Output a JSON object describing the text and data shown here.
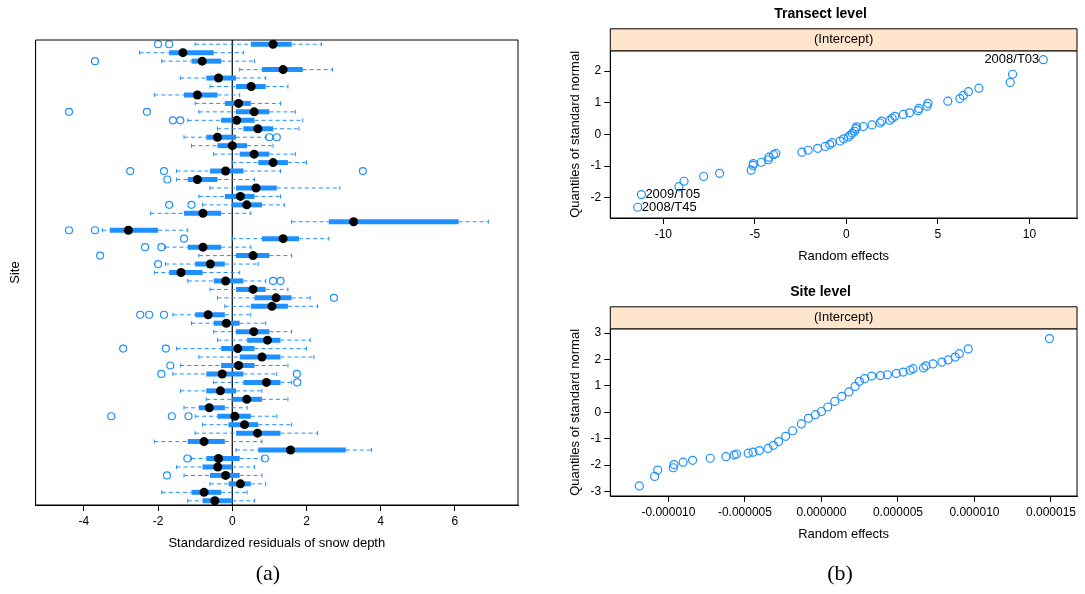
{
  "chart_data": [
    {
      "type": "box",
      "orientation": "horizontal",
      "xlabel": "Standardized residuals of snow depth",
      "ylabel": "Site",
      "color": "#1e90ff",
      "xlim": [
        -5.3,
        7.7
      ],
      "xticks": [
        -4,
        -2,
        0,
        2,
        4,
        6
      ],
      "tick_labels": "x",
      "ref_lines": [
        {
          "axis": "x",
          "value": 0,
          "color": "#000000"
        }
      ],
      "annotations": [
        "(a)"
      ],
      "categories": [
        null,
        null,
        null,
        null,
        null,
        null,
        null,
        null,
        null,
        null,
        null,
        null,
        null,
        null,
        null,
        null,
        null,
        null,
        null,
        null,
        null,
        null,
        null,
        null,
        null,
        null,
        null,
        null,
        null,
        null,
        null,
        null,
        null,
        null,
        null,
        null,
        null,
        null,
        null,
        null,
        null,
        null,
        null,
        null,
        null,
        null,
        null,
        null,
        null,
        null,
        null,
        null,
        null,
        null,
        null
      ],
      "boxes": [
        {
          "low": -1.0,
          "q1": 0.5,
          "median": 1.1,
          "q3": 1.6,
          "high": 2.4,
          "outliers": [
            -2.0,
            -1.7
          ]
        },
        {
          "low": -2.5,
          "q1": -1.7,
          "median": -1.33,
          "q3": -0.5,
          "high": 0.3
        },
        {
          "low": -1.9,
          "q1": -1.1,
          "median": -0.81,
          "q3": -0.3,
          "high": 0.6,
          "outliers": [
            -3.7
          ]
        },
        {
          "low": 0.2,
          "q1": 0.8,
          "median": 1.37,
          "q3": 1.9,
          "high": 2.7
        },
        {
          "low": -1.4,
          "q1": -0.7,
          "median": -0.37,
          "q3": 0.1,
          "high": 0.9
        },
        {
          "low": -0.6,
          "q1": 0.1,
          "median": 0.51,
          "q3": 0.9,
          "high": 1.5
        },
        {
          "low": -2.1,
          "q1": -1.3,
          "median": -0.94,
          "q3": -0.4,
          "high": 0.2
        },
        {
          "low": -1.0,
          "q1": -0.2,
          "median": 0.17,
          "q3": 0.5,
          "high": 1.3
        },
        {
          "low": -0.9,
          "q1": 0.1,
          "median": 0.59,
          "q3": 1.0,
          "high": 1.7,
          "outliers": [
            -4.4,
            -2.3
          ]
        },
        {
          "low": -1.2,
          "q1": -0.3,
          "median": 0.12,
          "q3": 0.6,
          "high": 1.9,
          "outliers": [
            -1.6,
            -1.4
          ]
        },
        {
          "low": -0.4,
          "q1": 0.3,
          "median": 0.69,
          "q3": 1.1,
          "high": 1.8
        },
        {
          "low": -1.3,
          "q1": -0.7,
          "median": -0.4,
          "q3": 0.1,
          "high": 0.9,
          "outliers": [
            1.0,
            1.2
          ]
        },
        {
          "low": -1.1,
          "q1": -0.4,
          "median": 0,
          "q3": 0.4,
          "high": 1.1
        },
        {
          "low": -0.5,
          "q1": 0.2,
          "median": 0.59,
          "q3": 1.0,
          "high": 1.7
        },
        {
          "low": 0.0,
          "q1": 0.7,
          "median": 1.1,
          "q3": 1.5,
          "high": 2.0
        },
        {
          "low": -1.5,
          "q1": -0.6,
          "median": -0.18,
          "q3": 0.3,
          "high": 1.3,
          "outliers": [
            -2.75,
            -1.84,
            3.52
          ]
        },
        {
          "low": -1.5,
          "q1": -1.2,
          "median": -0.94,
          "q3": -0.4,
          "high": 0.6,
          "outliers": [
            -1.75
          ]
        },
        {
          "low": -0.6,
          "q1": 0.1,
          "median": 0.64,
          "q3": 1.2,
          "high": 2.9
        },
        {
          "low": -0.9,
          "q1": -0.2,
          "median": 0.22,
          "q3": 0.6,
          "high": 1.3
        },
        {
          "low": -0.8,
          "q1": 0.0,
          "median": 0.39,
          "q3": 0.8,
          "high": 1.4,
          "outliers": [
            -1.7,
            -1.1
          ]
        },
        {
          "low": -2.2,
          "q1": -1.3,
          "median": -0.79,
          "q3": -0.3,
          "high": 0.5
        },
        {
          "low": 1.6,
          "q1": 2.6,
          "median": 3.27,
          "q3": 6.1,
          "high": 6.9
        },
        {
          "low": -3.5,
          "q1": -3.3,
          "median": -2.8,
          "q3": -2.0,
          "high": -1.2,
          "outliers": [
            -4.4,
            -3.7
          ]
        },
        {
          "low": 0.0,
          "q1": 0.8,
          "median": 1.37,
          "q3": 1.8,
          "high": 2.6,
          "outliers": [
            -1.3
          ]
        },
        {
          "low": -1.8,
          "q1": -1.2,
          "median": -0.79,
          "q3": -0.3,
          "high": 0.5,
          "outliers": [
            -2.35,
            -1.91
          ]
        },
        {
          "low": -0.9,
          "q1": 0.1,
          "median": 0.56,
          "q3": 1.0,
          "high": 1.6,
          "outliers": [
            -3.56
          ]
        },
        {
          "low": -1.8,
          "q1": -1.0,
          "median": -0.59,
          "q3": -0.2,
          "high": 0.7,
          "outliers": [
            -2.0
          ]
        },
        {
          "low": -2.1,
          "q1": -1.7,
          "median": -1.38,
          "q3": -0.8,
          "high": 0.2
        },
        {
          "low": -1.2,
          "q1": -0.5,
          "median": -0.18,
          "q3": 0.3,
          "high": 0.9,
          "outliers": [
            1.1,
            1.3
          ]
        },
        {
          "low": -0.6,
          "q1": 0.1,
          "median": 0.56,
          "q3": 0.9,
          "high": 1.5
        },
        {
          "low": -0.4,
          "q1": 0.6,
          "median": 1.18,
          "q3": 1.6,
          "high": 2.1,
          "outliers": [
            2.74
          ]
        },
        {
          "low": -0.2,
          "q1": 0.5,
          "median": 1.07,
          "q3": 1.5,
          "high": 2.3
        },
        {
          "low": -1.6,
          "q1": -1.0,
          "median": -0.65,
          "q3": -0.2,
          "high": 0.5,
          "outliers": [
            -2.48,
            -2.24,
            -1.84
          ]
        },
        {
          "low": -1.1,
          "q1": -0.5,
          "median": -0.16,
          "q3": 0.2,
          "high": 0.9
        },
        {
          "low": -0.5,
          "q1": 0.1,
          "median": 0.58,
          "q3": 1.0,
          "high": 1.6
        },
        {
          "low": -0.4,
          "q1": 0.4,
          "median": 0.95,
          "q3": 1.3,
          "high": 2.1
        },
        {
          "low": -1.5,
          "q1": -0.3,
          "median": 0.15,
          "q3": 0.6,
          "high": 2.0,
          "outliers": [
            -2.94,
            -1.79
          ]
        },
        {
          "low": -0.9,
          "q1": 0.2,
          "median": 0.8,
          "q3": 1.3,
          "high": 2.2
        },
        {
          "low": -1.4,
          "q1": -0.3,
          "median": 0.17,
          "q3": 0.6,
          "high": 1.5,
          "outliers": [
            -1.67
          ]
        },
        {
          "low": -1.6,
          "q1": -0.7,
          "median": -0.27,
          "q3": 0.3,
          "high": 1.2,
          "outliers": [
            -1.91,
            1.74
          ]
        },
        {
          "low": -0.5,
          "q1": 0.3,
          "median": 0.92,
          "q3": 1.3,
          "high": 1.6,
          "outliers": [
            1.75
          ]
        },
        {
          "low": -1.4,
          "q1": -0.7,
          "median": -0.32,
          "q3": 0.1,
          "high": 0.8
        },
        {
          "low": -0.7,
          "q1": 0.0,
          "median": 0.39,
          "q3": 0.8,
          "high": 1.5
        },
        {
          "low": -1.3,
          "q1": -0.9,
          "median": -0.62,
          "q3": -0.2,
          "high": 0.4
        },
        {
          "low": -1.0,
          "q1": -0.4,
          "median": 0.07,
          "q3": 0.5,
          "high": 1.2,
          "outliers": [
            -3.26,
            -1.63,
            -1.18
          ]
        },
        {
          "low": -0.8,
          "q1": -0.1,
          "median": 0.33,
          "q3": 0.7,
          "high": 1.6
        },
        {
          "low": -1.0,
          "q1": 0.1,
          "median": 0.68,
          "q3": 1.3,
          "high": 2.3
        },
        {
          "low": -2.1,
          "q1": -1.2,
          "median": -0.76,
          "q3": -0.2,
          "high": 0.8
        },
        {
          "low": 0.1,
          "q1": 0.7,
          "median": 1.57,
          "q3": 3.06,
          "high": 3.75
        },
        {
          "low": -1.1,
          "q1": -0.7,
          "median": -0.37,
          "q3": 0.2,
          "high": 0.8,
          "outliers": [
            -1.21,
            0.88
          ]
        },
        {
          "low": -1.5,
          "q1": -0.8,
          "median": -0.39,
          "q3": 0.0,
          "high": 0.6
        },
        {
          "low": -1.3,
          "q1": -0.6,
          "median": -0.18,
          "q3": 0.2,
          "high": 0.8,
          "outliers": [
            -1.76
          ]
        },
        {
          "low": -0.6,
          "q1": -0.1,
          "median": 0.22,
          "q3": 0.5,
          "high": 0.9
        },
        {
          "low": -1.9,
          "q1": -1.1,
          "median": -0.76,
          "q3": -0.3,
          "high": 0.4
        },
        {
          "low": -1.2,
          "q1": -0.8,
          "median": -0.47,
          "q3": 0.0,
          "high": 0.6
        }
      ]
    },
    {
      "type": "scatter",
      "title": "Transect level",
      "xlabel": "Random effects",
      "ylabel": "Quantiles of standard normal",
      "color": "#1e90ff",
      "marker": "circle",
      "xlim": [
        -12.9,
        12.6
      ],
      "ylim": [
        -2.64,
        2.64
      ],
      "xticks": [
        -10,
        -5,
        0,
        5,
        10
      ],
      "yticks": [
        -2,
        -1,
        0,
        1,
        2
      ],
      "annotations": [
        "(Intercept)",
        {
          "text": "2008/T03",
          "x": 10.76,
          "y": 2.36
        },
        {
          "text": "2009/T05",
          "x": -11.2,
          "y": -1.9
        },
        {
          "text": "2008/T45",
          "x": -11.4,
          "y": -2.3
        }
      ],
      "x": [
        -11.4,
        -11.2,
        -9.15,
        -8.87,
        -7.8,
        -6.93,
        -5.2,
        -5.1,
        -5.08,
        -4.64,
        -4.27,
        -4.23,
        -3.98,
        -3.85,
        -2.43,
        -2.09,
        -1.57,
        -1.16,
        -0.91,
        -0.78,
        -0.34,
        -0.15,
        0.1,
        0.23,
        0.32,
        0.45,
        0.51,
        0.55,
        0.93,
        1.4,
        1.84,
        1.93,
        2.37,
        2.5,
        2.65,
        3.11,
        3.45,
        3.92,
        3.96,
        4.4,
        4.46,
        5.54,
        6.2,
        6.39,
        6.67,
        7.24,
        8.95,
        9.08,
        10.76
      ],
      "values": [
        -2.3,
        -1.9,
        -1.65,
        -1.48,
        -1.33,
        -1.23,
        -1.13,
        -0.98,
        -0.92,
        -0.88,
        -0.8,
        -0.72,
        -0.64,
        -0.6,
        -0.56,
        -0.5,
        -0.44,
        -0.38,
        -0.32,
        -0.26,
        -0.21,
        -0.14,
        -0.08,
        -0.02,
        0.04,
        0.1,
        0.18,
        0.24,
        0.25,
        0.3,
        0.36,
        0.42,
        0.45,
        0.51,
        0.57,
        0.63,
        0.68,
        0.75,
        0.82,
        0.89,
        0.98,
        1.05,
        1.13,
        1.23,
        1.35,
        1.46,
        1.64,
        1.9,
        2.36
      ]
    },
    {
      "type": "scatter",
      "title": "Site level",
      "xlabel": "Random effects",
      "ylabel": "Quantiles of standard normal",
      "color": "#1e90ff",
      "marker": "circle",
      "xlim": [
        -1.38e-05,
        1.67e-05
      ],
      "ylim": [
        -3.17,
        3.16
      ],
      "xticks": [
        {
          "value": -1e-05,
          "label": "-0.000010"
        },
        {
          "value": -5e-06,
          "label": "-0.000005"
        },
        {
          "value": 0,
          "label": "0.000000"
        },
        {
          "value": 5e-06,
          "label": "0.000005"
        },
        {
          "value": 1e-05,
          "label": "0.000010"
        },
        {
          "value": 1.5e-05,
          "label": "0.000015"
        }
      ],
      "yticks": [
        -3,
        -2,
        -1,
        0,
        1,
        2,
        3
      ],
      "annotations": [
        "(Intercept)",
        "(b)"
      ],
      "x": [
        -1.19e-05,
        -1.09e-05,
        -1.07e-05,
        -9.68e-06,
        -9.63e-06,
        -9.04e-06,
        -8.42e-06,
        -7.27e-06,
        -6.24e-06,
        -5.71e-06,
        -5.55e-06,
        -4.79e-06,
        -4.47e-06,
        -4.06e-06,
        -3.49e-06,
        -3.14e-06,
        -2.8e-06,
        -2.34e-06,
        -1.88e-06,
        -1.31e-06,
        -8.5e-07,
        -3.9e-07,
        0,
        4.1e-07,
        8.7e-07,
        1.33e-06,
        1.79e-06,
        2.2e-06,
        2.48e-06,
        2.82e-06,
        3.28e-06,
        3.85e-06,
        4.31e-06,
        4.89e-06,
        5.34e-06,
        5.8e-06,
        5.99e-06,
        6.67e-06,
        6.83e-06,
        7.29e-06,
        7.87e-06,
        8.28e-06,
        8.74e-06,
        9.01e-06,
        9.59e-06,
        1.49e-05
      ],
      "values": [
        -2.79,
        -2.43,
        -2.19,
        -2.1,
        -1.98,
        -1.89,
        -1.82,
        -1.74,
        -1.68,
        -1.62,
        -1.58,
        -1.55,
        -1.51,
        -1.45,
        -1.37,
        -1.25,
        -1.11,
        -0.91,
        -0.7,
        -0.44,
        -0.23,
        -0.09,
        0.03,
        0.2,
        0.41,
        0.6,
        0.77,
        0.98,
        1.17,
        1.27,
        1.37,
        1.39,
        1.42,
        1.47,
        1.52,
        1.59,
        1.65,
        1.68,
        1.76,
        1.83,
        1.9,
        1.98,
        2.09,
        2.22,
        2.4,
        2.79
      ]
    }
  ]
}
